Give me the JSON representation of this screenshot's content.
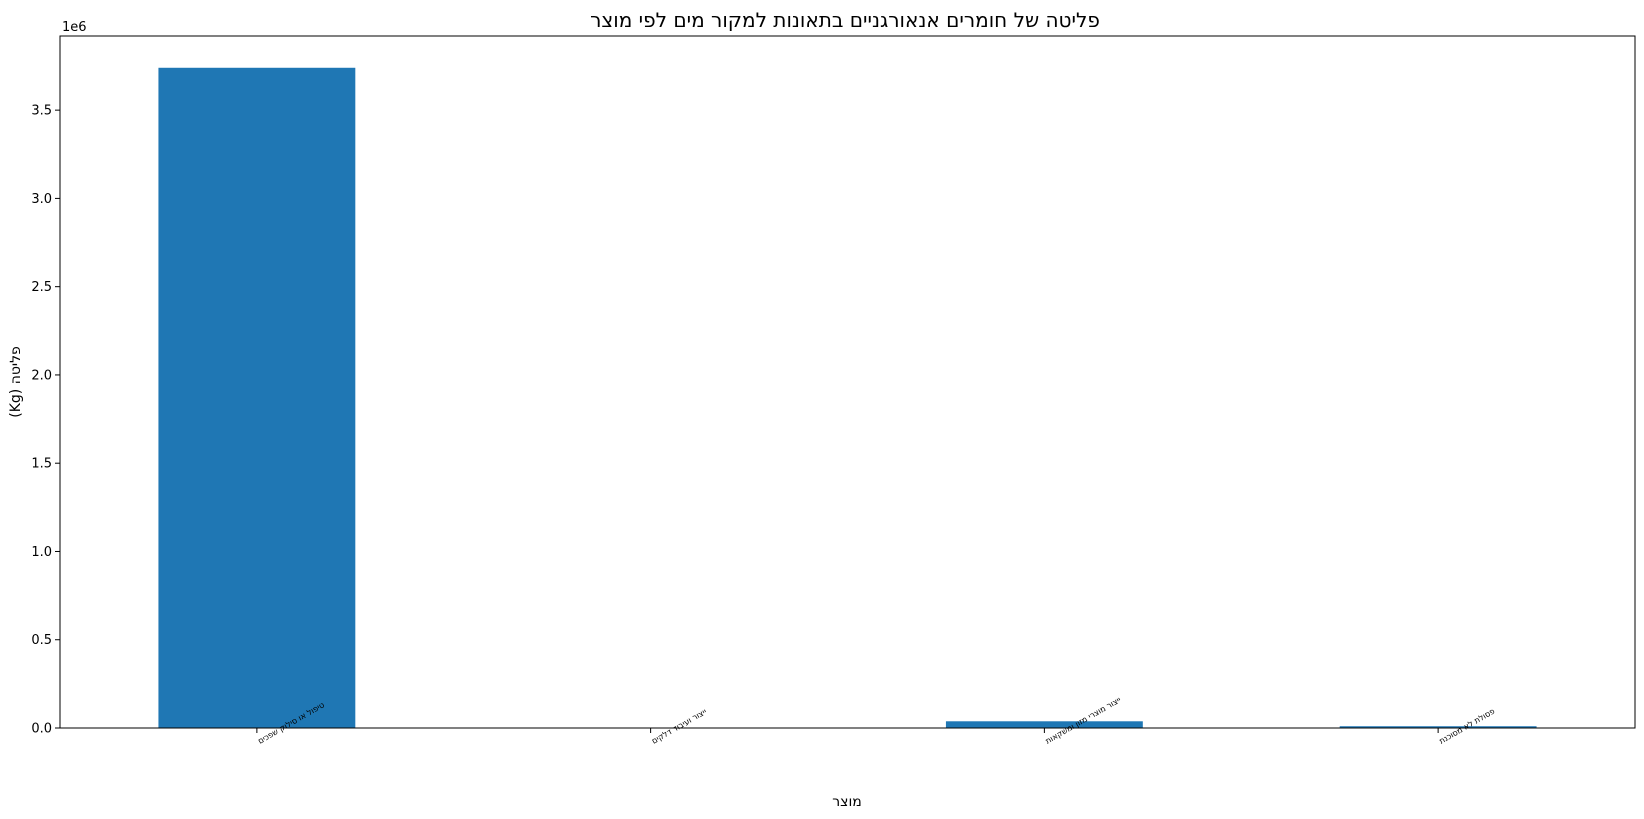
{
  "chart_data": {
    "type": "bar",
    "title": "פליטה של חומרים אנאורגניים בתאונות למקור מים לפי מוצר",
    "xlabel": "מוצר",
    "ylabel": "פליטה (Kg)",
    "y_offset_label": "1e6",
    "categories": [
      "טיפול או סילוק שפכים",
      "ייצור ועיבוד דלקים",
      "ייצור מוצרי מזון ומשקאות",
      "פסולת לא מסוכנת"
    ],
    "values": [
      3740000,
      500,
      38000,
      10000
    ],
    "ylim": [
      0,
      3920000
    ],
    "yticks": [
      0,
      500000,
      1000000,
      1500000,
      2000000,
      2500000,
      3000000,
      3500000
    ],
    "ytick_labels": [
      "0.0",
      "0.5",
      "1.0",
      "1.5",
      "2.0",
      "2.5",
      "3.0",
      "3.5"
    ],
    "bar_color": "#1f77b4",
    "grid": false,
    "legend": "none"
  }
}
